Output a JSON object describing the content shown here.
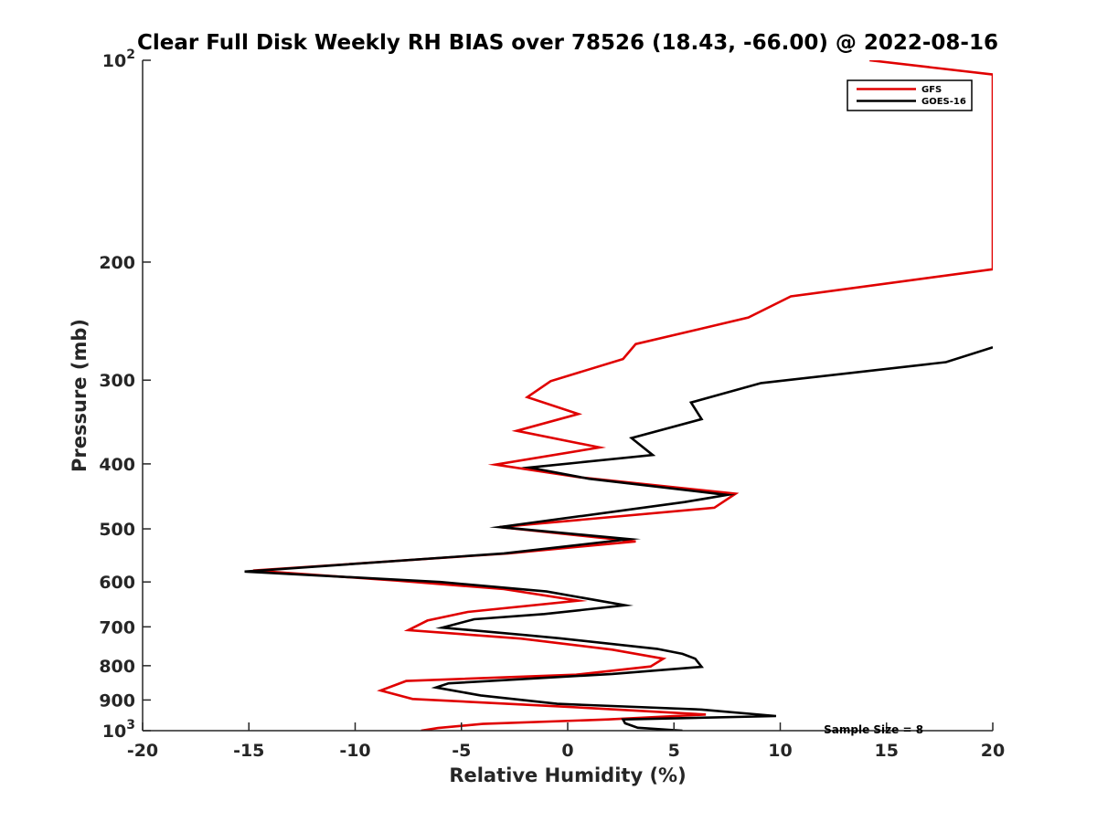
{
  "chart_data": {
    "type": "line",
    "title": "Clear Full Disk Weekly RH BIAS over 78526 (18.43, -66.00) @ 2022-08-16",
    "xlabel": "Relative Humidity (%)",
    "ylabel": "Pressure (mb)",
    "xlim": [
      -20,
      20
    ],
    "ylim": [
      100,
      1000
    ],
    "y_scale": "log",
    "y_reversed": true,
    "grid": false,
    "legend_position": "top-right",
    "x_ticks": [
      -20,
      -15,
      -10,
      -5,
      0,
      5,
      10,
      15,
      20
    ],
    "x_tick_labels": [
      "-20",
      "-15",
      "-10",
      "-5",
      "0",
      "5",
      "10",
      "15",
      "20"
    ],
    "y_ticks": [
      100,
      200,
      300,
      400,
      500,
      600,
      700,
      800,
      900,
      1000
    ],
    "y_tick_labels": [
      {
        "base": "10",
        "exp": "2"
      },
      {
        "base": "200",
        "exp": ""
      },
      {
        "base": "300",
        "exp": ""
      },
      {
        "base": "400",
        "exp": ""
      },
      {
        "base": "500",
        "exp": ""
      },
      {
        "base": "600",
        "exp": ""
      },
      {
        "base": "700",
        "exp": ""
      },
      {
        "base": "800",
        "exp": ""
      },
      {
        "base": "900",
        "exp": ""
      },
      {
        "base": "10",
        "exp": "3"
      }
    ],
    "series": [
      {
        "name": "GFS",
        "color": "#e00000",
        "points": [
          [
            14.2,
            100
          ],
          [
            20.0,
            105
          ],
          [
            20.0,
            205
          ],
          [
            10.5,
            225
          ],
          [
            8.5,
            242
          ],
          [
            3.2,
            265
          ],
          [
            2.6,
            279
          ],
          [
            -0.8,
            301
          ],
          [
            -1.9,
            318
          ],
          [
            0.5,
            337
          ],
          [
            -2.4,
            357
          ],
          [
            1.5,
            378
          ],
          [
            -3.4,
            401
          ],
          [
            0.6,
            419
          ],
          [
            7.9,
            443
          ],
          [
            6.9,
            465
          ],
          [
            -3.2,
            497
          ],
          [
            3.2,
            522
          ],
          [
            -2.8,
            544
          ],
          [
            -14.8,
            577
          ],
          [
            -8.1,
            597
          ],
          [
            -3.0,
            615
          ],
          [
            0.5,
            640
          ],
          [
            -4.7,
            665
          ],
          [
            -6.6,
            685
          ],
          [
            -7.5,
            708
          ],
          [
            -2.2,
            729
          ],
          [
            2.1,
            757
          ],
          [
            4.5,
            781
          ],
          [
            3.9,
            802
          ],
          [
            0.4,
            825
          ],
          [
            -7.6,
            843
          ],
          [
            -8.8,
            871
          ],
          [
            -7.3,
            897
          ],
          [
            -0.4,
            920
          ],
          [
            6.5,
            946
          ],
          [
            1.9,
            962
          ],
          [
            -4.0,
            977
          ],
          [
            -6.1,
            991
          ],
          [
            -6.9,
            1000
          ]
        ]
      },
      {
        "name": "GOES-16",
        "color": "#000000",
        "points": [
          [
            20.0,
            268
          ],
          [
            17.8,
            282
          ],
          [
            9.1,
            303
          ],
          [
            5.8,
            324
          ],
          [
            6.3,
            343
          ],
          [
            3.0,
            366
          ],
          [
            4.0,
            388
          ],
          [
            -1.8,
            405
          ],
          [
            1.0,
            421
          ],
          [
            7.5,
            445
          ],
          [
            5.5,
            456
          ],
          [
            -3.2,
            497
          ],
          [
            2.9,
            518
          ],
          [
            -3.0,
            544
          ],
          [
            -15.2,
            579
          ],
          [
            -6.0,
            600
          ],
          [
            -1.0,
            620
          ],
          [
            2.7,
            650
          ],
          [
            -1.1,
            670
          ],
          [
            -4.4,
            682
          ],
          [
            -5.9,
            702
          ],
          [
            -2.0,
            720
          ],
          [
            -0.4,
            728
          ],
          [
            4.2,
            755
          ],
          [
            5.4,
            768
          ],
          [
            6.0,
            781
          ],
          [
            6.3,
            803
          ],
          [
            2.1,
            823
          ],
          [
            -5.6,
            850
          ],
          [
            -6.2,
            862
          ],
          [
            -4.1,
            886
          ],
          [
            -0.5,
            912
          ],
          [
            6.3,
            930
          ],
          [
            9.8,
            951
          ],
          [
            2.6,
            962
          ],
          [
            2.7,
            975
          ],
          [
            3.3,
            990
          ],
          [
            5.4,
            1000
          ]
        ]
      }
    ],
    "annotations": [
      {
        "text": "Sample Size = 8",
        "x": 14.2,
        "y": 925
      }
    ]
  }
}
